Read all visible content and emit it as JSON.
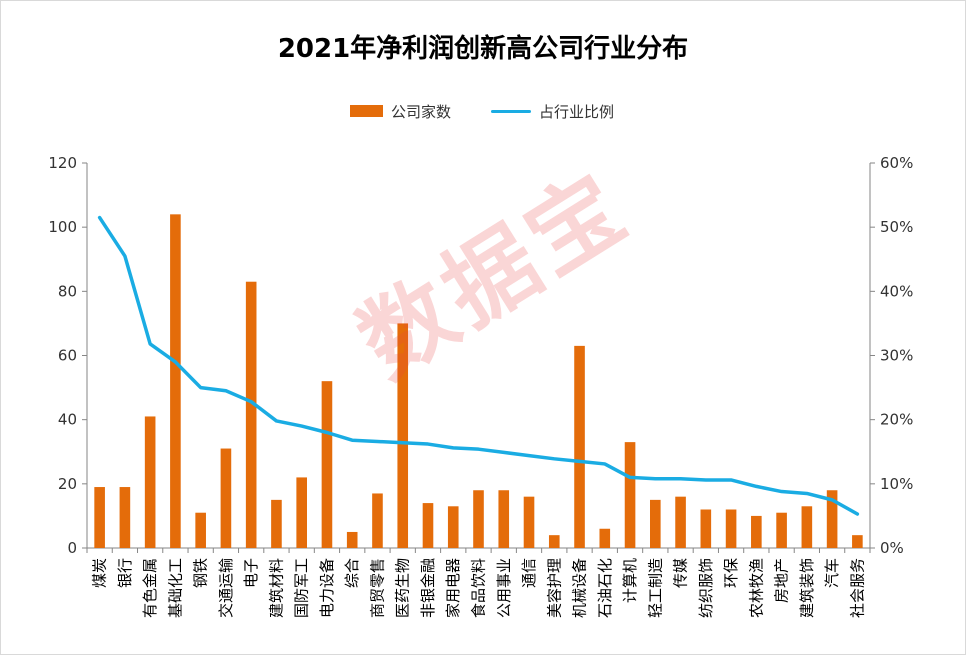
{
  "chart_data": {
    "type": "bar",
    "title": "2021年净利润创新高公司行业分布",
    "categories": [
      "煤炭",
      "银行",
      "有色金属",
      "基础化工",
      "钢铁",
      "交通运输",
      "电子",
      "建筑材料",
      "国防军工",
      "电力设备",
      "综合",
      "商贸零售",
      "医药生物",
      "非银金融",
      "家用电器",
      "食品饮料",
      "公用事业",
      "通信",
      "美容护理",
      "机械设备",
      "石油石化",
      "计算机",
      "轻工制造",
      "传媒",
      "纺织服饰",
      "环保",
      "农林牧渔",
      "房地产",
      "建筑装饰",
      "汽车",
      "社会服务"
    ],
    "series": [
      {
        "name": "公司家数",
        "kind": "bar",
        "axis": "left",
        "color": "#E46C0A",
        "values": [
          19,
          19,
          41,
          104,
          11,
          31,
          83,
          15,
          22,
          52,
          5,
          17,
          70,
          14,
          13,
          18,
          18,
          16,
          4,
          63,
          6,
          33,
          15,
          16,
          12,
          12,
          10,
          11,
          13,
          18,
          4
        ]
      },
      {
        "name": "占行业比例",
        "kind": "line",
        "axis": "right",
        "color": "#1AACE3",
        "values": [
          0.515,
          0.455,
          0.318,
          0.29,
          0.25,
          0.245,
          0.228,
          0.198,
          0.19,
          0.18,
          0.168,
          0.166,
          0.164,
          0.162,
          0.156,
          0.154,
          0.149,
          0.144,
          0.139,
          0.135,
          0.131,
          0.11,
          0.108,
          0.108,
          0.106,
          0.106,
          0.096,
          0.088,
          0.085,
          0.075,
          0.053
        ]
      }
    ],
    "y_left": {
      "min": 0,
      "max": 120,
      "ticks": [
        "0",
        "20",
        "40",
        "60",
        "80",
        "100",
        "120"
      ]
    },
    "y_right": {
      "min": 0,
      "max": 0.6,
      "ticks": [
        "0%",
        "10%",
        "20%",
        "30%",
        "40%",
        "50%",
        "60%"
      ]
    },
    "grid": false,
    "legend_position": "top-center"
  },
  "watermark": "数据宝"
}
